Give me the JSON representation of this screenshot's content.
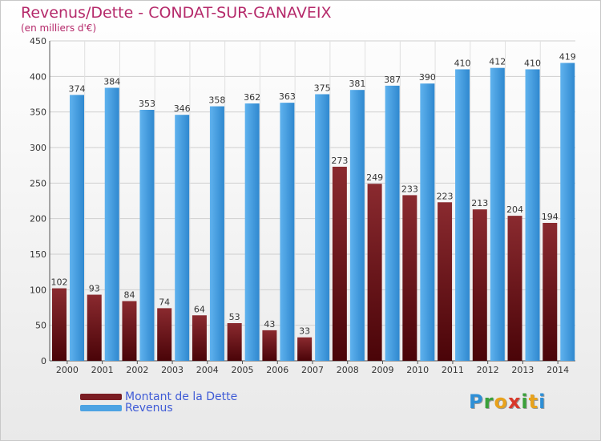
{
  "header": {
    "title": "Revenus/Dette - CONDAT-SUR-GANAVEIX",
    "subtitle": "(en milliers d'€)"
  },
  "chart_data": {
    "type": "bar",
    "categories": [
      "2000",
      "2001",
      "2002",
      "2003",
      "2004",
      "2005",
      "2006",
      "2007",
      "2008",
      "2009",
      "2010",
      "2011",
      "2012",
      "2013",
      "2014"
    ],
    "series": [
      {
        "name": "Montant de la Dette",
        "values": [
          102,
          93,
          84,
          74,
          64,
          53,
          43,
          33,
          273,
          249,
          233,
          223,
          213,
          204,
          194
        ],
        "color": "#7a1c22"
      },
      {
        "name": "Revenus",
        "values": [
          374,
          384,
          353,
          346,
          358,
          362,
          363,
          375,
          381,
          387,
          390,
          410,
          412,
          410,
          419
        ],
        "color": "#4da3e3"
      }
    ],
    "ylim": [
      0,
      450
    ],
    "yticks": [
      0,
      50,
      100,
      150,
      200,
      250,
      300,
      350,
      400,
      450
    ],
    "grid": true,
    "legend": "bottom-left"
  },
  "legend": {
    "items": [
      {
        "label": "Montant de la Dette",
        "color": "#7a1c22"
      },
      {
        "label": "Revenus",
        "color": "#4da3e3"
      }
    ]
  },
  "brand": {
    "letters": [
      "P",
      "r",
      "o",
      "x",
      "i",
      "t",
      "i"
    ],
    "colors": [
      "#2e8fd6",
      "#3aa03a",
      "#e8a21c",
      "#d8382a",
      "#3aa03a",
      "#e8a21c",
      "#2e8fd6"
    ]
  }
}
